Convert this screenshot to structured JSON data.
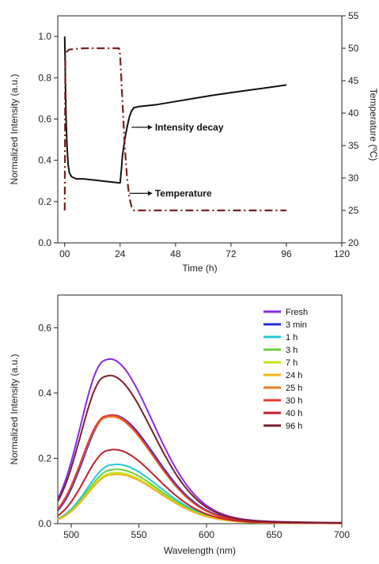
{
  "chart_data": [
    {
      "type": "line",
      "xlabel": "Time (h)",
      "ylabel": "Normalized Intensity (a.u.)",
      "y2label": "Temperature (ºC)",
      "xlim": [
        -3,
        120
      ],
      "ylim": [
        0,
        1.1
      ],
      "y2lim": [
        20,
        55
      ],
      "xticks": [
        0,
        24,
        48,
        72,
        96,
        120
      ],
      "xticklabels": [
        "00",
        "24",
        "48",
        "72",
        "96",
        "120"
      ],
      "yticks": [
        0.0,
        0.2,
        0.4,
        0.6,
        0.8,
        1.0
      ],
      "yticklabels": [
        "0.0",
        "0.2",
        "0.4",
        "0.6",
        "0.8",
        "1.0"
      ],
      "y2ticks": [
        20,
        25,
        30,
        35,
        40,
        45,
        50,
        55
      ],
      "y2ticklabels": [
        "20",
        "25",
        "30",
        "35",
        "40",
        "45",
        "50",
        "55"
      ],
      "series": [
        {
          "name": "Intensity decay",
          "axis": "left",
          "color": "#111111",
          "style": "solid",
          "x": [
            0,
            0.3,
            0.6,
            1,
            1.5,
            2,
            3,
            5,
            8,
            12,
            16,
            20,
            24,
            24.5,
            25,
            26,
            27,
            28,
            29,
            30,
            32,
            36,
            40,
            48,
            56,
            64,
            72,
            80,
            88,
            96
          ],
          "y": [
            1.0,
            0.8,
            0.6,
            0.47,
            0.38,
            0.34,
            0.32,
            0.31,
            0.31,
            0.305,
            0.3,
            0.295,
            0.29,
            0.35,
            0.42,
            0.5,
            0.56,
            0.61,
            0.64,
            0.655,
            0.66,
            0.665,
            0.67,
            0.685,
            0.7,
            0.715,
            0.728,
            0.74,
            0.752,
            0.765
          ]
        },
        {
          "name": "Temperature",
          "axis": "right",
          "color": "#7a1f1f",
          "style": "dashdot",
          "x": [
            0,
            0.3,
            0.6,
            1,
            2,
            8,
            16,
            23.5,
            24,
            25,
            26,
            27,
            28,
            29,
            30,
            32,
            48,
            72,
            96
          ],
          "y": [
            25,
            49,
            49.3,
            49.5,
            49.8,
            50,
            50,
            50,
            49,
            42,
            35,
            30,
            27,
            25.5,
            25,
            25,
            25,
            25,
            25
          ]
        }
      ],
      "annotations": [
        "Intensity decay",
        "Temperature"
      ]
    },
    {
      "type": "line",
      "xlabel": "Wavelength (nm)",
      "ylabel": "Normalized Intensity (a.u.)",
      "xlim": [
        490,
        700
      ],
      "ylim": [
        0,
        0.7
      ],
      "xticks": [
        500,
        550,
        600,
        650,
        700
      ],
      "xticklabels": [
        "500",
        "550",
        "600",
        "650",
        "700"
      ],
      "yticks": [
        0.0,
        0.2,
        0.4,
        0.6
      ],
      "yticklabels": [
        "0.0",
        "0.2",
        "0.4",
        "0.6"
      ],
      "legend_position": "top-right",
      "series": [
        {
          "name": "Fresh",
          "color": "#8a2be2",
          "peak_x": 525,
          "peak_y": 0.5
        },
        {
          "name": "3 min",
          "color": "#1f2fd6",
          "peak_x": 527,
          "peak_y": 0.33
        },
        {
          "name": "1 h",
          "color": "#25c9d6",
          "peak_x": 530,
          "peak_y": 0.18
        },
        {
          "name": "3 h",
          "color": "#6ccf3a",
          "peak_x": 530,
          "peak_y": 0.165
        },
        {
          "name": "7 h",
          "color": "#c6e61e",
          "peak_x": 530,
          "peak_y": 0.155
        },
        {
          "name": "24 h",
          "color": "#f0b419",
          "peak_x": 530,
          "peak_y": 0.15
        },
        {
          "name": "25 h",
          "color": "#ee7a25",
          "peak_x": 526,
          "peak_y": 0.325
        },
        {
          "name": "30 h",
          "color": "#e33b2e",
          "peak_x": 526,
          "peak_y": 0.33
        },
        {
          "name": "40 h",
          "color": "#c51e2e",
          "peak_x": 528,
          "peak_y": 0.225
        },
        {
          "name": "96 h",
          "color": "#7a1f2f",
          "peak_x": 525,
          "peak_y": 0.45
        }
      ]
    }
  ]
}
